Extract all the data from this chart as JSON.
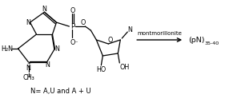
{
  "background_color": "#ffffff",
  "arrow_text": "montmorillonite",
  "product_text": "(pN)",
  "product_subscript": "35-40",
  "bottom_text": "N= A,U and A + U",
  "figsize": [
    2.91,
    1.33
  ],
  "dpi": 100
}
